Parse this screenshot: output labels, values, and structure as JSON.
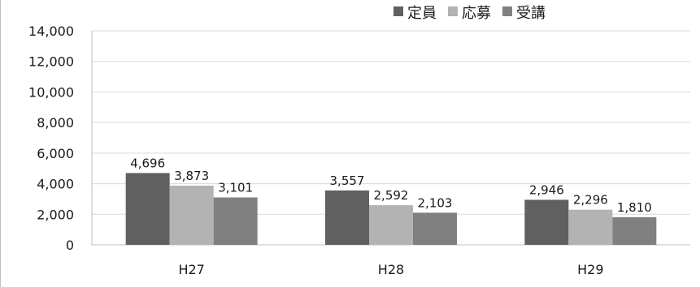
{
  "chart_data": {
    "type": "bar",
    "categories": [
      "H27",
      "H28",
      "H29"
    ],
    "series": [
      {
        "name": "定員",
        "values": [
          4696,
          3557,
          2946
        ],
        "color": "#606060",
        "labels": [
          "4,696",
          "3,557",
          "2,946"
        ]
      },
      {
        "name": "応募",
        "values": [
          3873,
          2592,
          2296
        ],
        "color": "#b3b3b3",
        "labels": [
          "3,873",
          "2,592",
          "2,296"
        ]
      },
      {
        "name": "受講",
        "values": [
          3101,
          2103,
          1810
        ],
        "color": "#808080",
        "labels": [
          "3,101",
          "2,103",
          "1,810"
        ]
      }
    ],
    "ylim": [
      0,
      14000
    ],
    "yticks": [
      0,
      2000,
      4000,
      6000,
      8000,
      10000,
      12000,
      14000
    ],
    "ytick_labels": [
      "0",
      "2,000",
      "4,000",
      "6,000",
      "8,000",
      "10,000",
      "12,000",
      "14,000"
    ],
    "grid": true,
    "gridline_color": "#d9d9d9",
    "legend_position": "top-right",
    "title": "",
    "xlabel": "",
    "ylabel": ""
  }
}
